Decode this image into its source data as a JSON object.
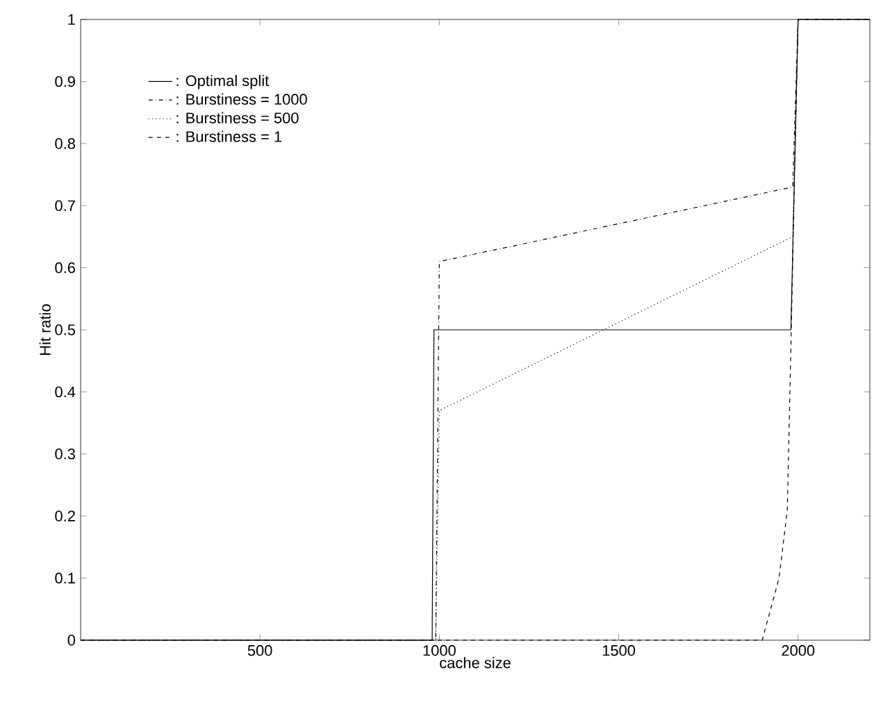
{
  "chart_data": {
    "type": "line",
    "xlabel": "cache size",
    "ylabel": "Hit ratio",
    "xlim": [
      0,
      2200
    ],
    "ylim": [
      0,
      1
    ],
    "xticks": [
      500,
      1000,
      1500,
      2000
    ],
    "yticks": [
      0,
      0.1,
      0.2,
      0.3,
      0.4,
      0.5,
      0.6,
      0.7,
      0.8,
      0.9,
      1
    ],
    "legend": "top left",
    "grid": false,
    "marker": "none",
    "series": [
      {
        "name": ": Optimal split",
        "color": "#000000",
        "line_style": "solid",
        "x": [
          0,
          980,
          985,
          1980,
          2000,
          2200
        ],
        "values": [
          0,
          0,
          0.5,
          0.5,
          1,
          1
        ]
      },
      {
        "name": ": Burstiness = 1000",
        "color": "#000000",
        "line_style": "dashdot",
        "x": [
          0,
          990,
          1000,
          1985,
          2000,
          2200
        ],
        "values": [
          0,
          0,
          0.61,
          0.73,
          1,
          1
        ]
      },
      {
        "name": ": Burstiness = 500",
        "color": "#000000",
        "line_style": "dotted",
        "x": [
          0,
          990,
          1000,
          1985,
          2000,
          2200
        ],
        "values": [
          0,
          0,
          0.37,
          0.65,
          1,
          1
        ]
      },
      {
        "name": ": Burstiness = 1",
        "color": "#000000",
        "line_style": "dashed",
        "x": [
          0,
          1900,
          1947,
          1970,
          1981,
          1990,
          2000,
          2200
        ],
        "values": [
          0,
          0,
          0.1,
          0.21,
          0.5,
          0.75,
          1,
          1
        ]
      }
    ]
  }
}
